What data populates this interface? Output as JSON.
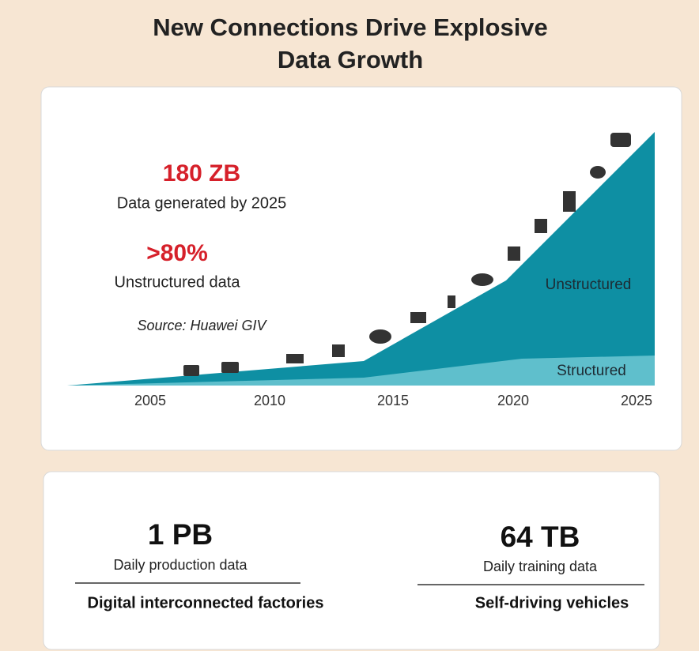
{
  "title": [
    "New Connections Drive Explosive",
    "Data Growth"
  ],
  "chart_card": {
    "highlights": [
      {
        "value": "180 ZB",
        "caption": "Data generated by 2025"
      },
      {
        "value": ">80%",
        "caption": "Unstructured data"
      }
    ],
    "source": "Source: Huawei GIV",
    "area_labels": [
      "Unstructured",
      "Structured"
    ],
    "years": [
      "2005",
      "2010",
      "2015",
      "2020",
      "2025"
    ]
  },
  "stats": [
    {
      "value": "1 PB",
      "caption": "Daily production data",
      "context": "Digital interconnected factories"
    },
    {
      "value": "64 TB",
      "caption": "Daily training data",
      "context": "Self-driving vehicles"
    }
  ]
}
